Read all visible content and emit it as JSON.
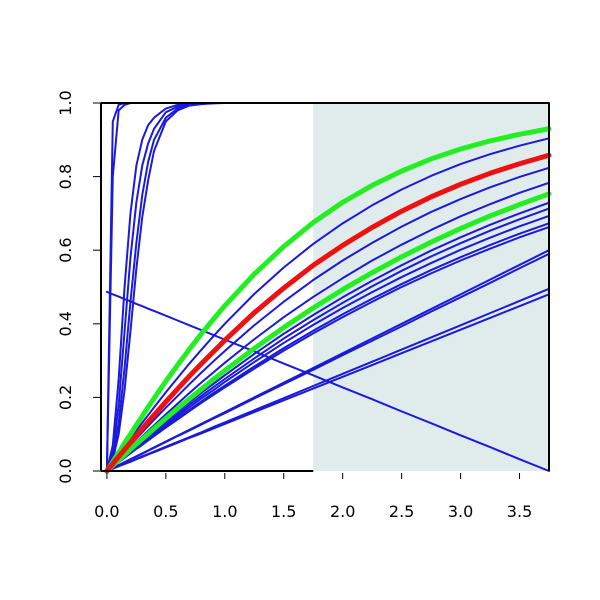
{
  "chart_data": {
    "type": "line",
    "title": "",
    "xlabel": "",
    "ylabel": "",
    "xlim": [
      -0.05,
      3.75
    ],
    "ylim": [
      0.0,
      1.0
    ],
    "grid": false,
    "x_ticks": [
      0.0,
      0.5,
      1.0,
      1.5,
      2.0,
      2.5,
      3.0,
      3.5
    ],
    "x_tick_labels": [
      "0.0",
      "0.5",
      "1.0",
      "1.5",
      "2.0",
      "2.5",
      "3.0",
      "3.5"
    ],
    "y_ticks": [
      0.0,
      0.2,
      0.4,
      0.6,
      0.8,
      1.0
    ],
    "y_tick_labels": [
      "0.0",
      "0.2",
      "0.4",
      "0.6",
      "0.8",
      "1.0"
    ],
    "shaded_region": {
      "x_from": 1.75,
      "x_to": 3.75,
      "y_from": 0.0,
      "y_to": 1.0,
      "color": "#e0ecec"
    },
    "colors": {
      "blue": "#1a1adb",
      "red": "#ee1111",
      "green": "#22ee22",
      "axis": "#000000"
    },
    "x": [
      0.0,
      0.05,
      0.1,
      0.15,
      0.2,
      0.25,
      0.3,
      0.35,
      0.4,
      0.5,
      0.6,
      0.7,
      0.8,
      0.9,
      1.0,
      1.25,
      1.5,
      1.75,
      2.0,
      2.25,
      2.5,
      2.75,
      3.0,
      3.25,
      3.5,
      3.75
    ],
    "series": [
      {
        "color": "blue",
        "width": 2,
        "values": [
          0.0,
          0.95,
          0.995,
          1.0,
          1.0,
          1.0,
          1.0,
          1.0,
          1.0,
          1.0,
          1.0,
          1.0,
          1.0,
          1.0,
          1.0,
          1.0,
          1.0,
          1.0,
          1.0,
          1.0,
          1.0,
          1.0,
          1.0,
          1.0,
          1.0,
          1.0
        ]
      },
      {
        "color": "blue",
        "width": 2,
        "values": [
          0.0,
          0.8,
          0.98,
          0.995,
          1.0,
          1.0,
          1.0,
          1.0,
          1.0,
          1.0,
          1.0,
          1.0,
          1.0,
          1.0,
          1.0,
          1.0,
          1.0,
          1.0,
          1.0,
          1.0,
          1.0,
          1.0,
          1.0,
          1.0,
          1.0,
          1.0
        ]
      },
      {
        "color": "blue",
        "width": 2,
        "values": [
          0.0,
          0.07,
          0.25,
          0.5,
          0.7,
          0.83,
          0.9,
          0.94,
          0.96,
          0.985,
          0.995,
          0.998,
          1.0,
          1.0,
          1.0,
          1.0,
          1.0,
          1.0,
          1.0,
          1.0,
          1.0,
          1.0,
          1.0,
          1.0,
          1.0,
          1.0
        ]
      },
      {
        "color": "blue",
        "width": 2,
        "values": [
          0.0,
          0.05,
          0.18,
          0.38,
          0.58,
          0.73,
          0.83,
          0.89,
          0.93,
          0.975,
          0.99,
          0.996,
          0.999,
          1.0,
          1.0,
          1.0,
          1.0,
          1.0,
          1.0,
          1.0,
          1.0,
          1.0,
          1.0,
          1.0,
          1.0,
          1.0
        ]
      },
      {
        "color": "blue",
        "width": 2,
        "values": [
          0.0,
          0.04,
          0.13,
          0.28,
          0.46,
          0.62,
          0.75,
          0.84,
          0.9,
          0.96,
          0.985,
          0.995,
          0.998,
          1.0,
          1.0,
          1.0,
          1.0,
          1.0,
          1.0,
          1.0,
          1.0,
          1.0,
          1.0,
          1.0,
          1.0,
          1.0
        ]
      },
      {
        "color": "blue",
        "width": 2,
        "values": [
          0.0,
          0.03,
          0.1,
          0.22,
          0.38,
          0.55,
          0.69,
          0.79,
          0.87,
          0.95,
          0.98,
          0.993,
          0.997,
          0.999,
          1.0,
          1.0,
          1.0,
          1.0,
          1.0,
          1.0,
          1.0,
          1.0,
          1.0,
          1.0,
          1.0,
          1.0
        ]
      },
      {
        "color": "blue",
        "width": 2,
        "values": [
          0.0,
          0.025,
          0.05,
          0.076,
          0.1,
          0.125,
          0.149,
          0.174,
          0.197,
          0.244,
          0.288,
          0.331,
          0.372,
          0.411,
          0.449,
          0.535,
          0.61,
          0.675,
          0.73,
          0.776,
          0.815,
          0.848,
          0.875,
          0.897,
          0.915,
          0.93
        ]
      },
      {
        "color": "blue",
        "width": 2,
        "values": [
          0.0,
          0.022,
          0.044,
          0.066,
          0.088,
          0.11,
          0.131,
          0.152,
          0.173,
          0.214,
          0.253,
          0.292,
          0.329,
          0.365,
          0.4,
          0.481,
          0.553,
          0.617,
          0.673,
          0.722,
          0.765,
          0.802,
          0.834,
          0.861,
          0.884,
          0.904
        ]
      },
      {
        "color": "blue",
        "width": 2,
        "values": [
          0.0,
          0.02,
          0.039,
          0.058,
          0.077,
          0.096,
          0.115,
          0.134,
          0.152,
          0.188,
          0.223,
          0.258,
          0.291,
          0.323,
          0.355,
          0.43,
          0.497,
          0.559,
          0.613,
          0.662,
          0.706,
          0.745,
          0.779,
          0.809,
          0.835,
          0.858
        ]
      },
      {
        "color": "blue",
        "width": 2,
        "values": [
          0.0,
          0.018,
          0.036,
          0.053,
          0.071,
          0.088,
          0.105,
          0.122,
          0.139,
          0.172,
          0.204,
          0.236,
          0.267,
          0.297,
          0.326,
          0.396,
          0.46,
          0.519,
          0.572,
          0.62,
          0.664,
          0.704,
          0.739,
          0.771,
          0.799,
          0.824
        ]
      },
      {
        "color": "blue",
        "width": 2,
        "values": [
          0.0,
          0.016,
          0.032,
          0.048,
          0.063,
          0.079,
          0.094,
          0.109,
          0.124,
          0.154,
          0.183,
          0.212,
          0.24,
          0.267,
          0.294,
          0.358,
          0.418,
          0.473,
          0.524,
          0.572,
          0.615,
          0.655,
          0.692,
          0.725,
          0.756,
          0.783
        ]
      },
      {
        "color": "blue",
        "width": 2,
        "values": [
          0.0,
          0.015,
          0.03,
          0.044,
          0.059,
          0.073,
          0.087,
          0.101,
          0.115,
          0.143,
          0.17,
          0.196,
          0.222,
          0.248,
          0.273,
          0.333,
          0.39,
          0.443,
          0.493,
          0.539,
          0.582,
          0.622,
          0.659,
          0.693,
          0.724,
          0.753
        ]
      },
      {
        "color": "blue",
        "width": 2,
        "values": [
          0.0,
          0.014,
          0.028,
          0.042,
          0.056,
          0.069,
          0.083,
          0.096,
          0.11,
          0.136,
          0.162,
          0.187,
          0.212,
          0.236,
          0.26,
          0.318,
          0.373,
          0.424,
          0.472,
          0.517,
          0.559,
          0.599,
          0.635,
          0.669,
          0.7,
          0.729
        ]
      },
      {
        "color": "blue",
        "width": 2,
        "values": [
          0.0,
          0.013,
          0.027,
          0.04,
          0.053,
          0.066,
          0.079,
          0.092,
          0.105,
          0.13,
          0.155,
          0.18,
          0.204,
          0.227,
          0.25,
          0.306,
          0.36,
          0.41,
          0.457,
          0.502,
          0.544,
          0.583,
          0.619,
          0.653,
          0.684,
          0.713
        ]
      },
      {
        "color": "blue",
        "width": 2,
        "values": [
          0.0,
          0.013,
          0.026,
          0.039,
          0.051,
          0.064,
          0.076,
          0.089,
          0.101,
          0.126,
          0.15,
          0.173,
          0.197,
          0.219,
          0.242,
          0.296,
          0.348,
          0.397,
          0.443,
          0.486,
          0.527,
          0.565,
          0.601,
          0.634,
          0.665,
          0.693
        ]
      },
      {
        "color": "blue",
        "width": 2,
        "values": [
          0.0,
          0.012,
          0.025,
          0.037,
          0.049,
          0.061,
          0.073,
          0.085,
          0.097,
          0.121,
          0.144,
          0.166,
          0.189,
          0.211,
          0.232,
          0.284,
          0.334,
          0.381,
          0.426,
          0.468,
          0.508,
          0.546,
          0.581,
          0.614,
          0.645,
          0.673
        ]
      },
      {
        "color": "blue",
        "width": 2,
        "values": [
          0.0,
          0.012,
          0.024,
          0.036,
          0.048,
          0.06,
          0.071,
          0.083,
          0.095,
          0.118,
          0.14,
          0.163,
          0.185,
          0.206,
          0.227,
          0.278,
          0.327,
          0.374,
          0.418,
          0.46,
          0.5,
          0.537,
          0.572,
          0.604,
          0.635,
          0.663
        ]
      },
      {
        "color": "blue",
        "width": 2,
        "values": [
          0.0,
          0.008,
          0.016,
          0.024,
          0.032,
          0.04,
          0.048,
          0.056,
          0.064,
          0.08,
          0.096,
          0.112,
          0.128,
          0.144,
          0.16,
          0.2,
          0.24,
          0.28,
          0.32,
          0.36,
          0.4,
          0.44,
          0.48,
          0.52,
          0.56,
          0.6
        ]
      },
      {
        "color": "blue",
        "width": 2,
        "values": [
          0.0,
          0.008,
          0.016,
          0.024,
          0.032,
          0.039,
          0.047,
          0.055,
          0.063,
          0.079,
          0.095,
          0.11,
          0.126,
          0.142,
          0.157,
          0.197,
          0.236,
          0.275,
          0.315,
          0.354,
          0.393,
          0.433,
          0.472,
          0.511,
          0.551,
          0.59
        ]
      },
      {
        "color": "blue",
        "width": 2,
        "values": [
          0.0,
          0.007,
          0.013,
          0.02,
          0.026,
          0.033,
          0.04,
          0.046,
          0.053,
          0.066,
          0.079,
          0.092,
          0.105,
          0.119,
          0.132,
          0.165,
          0.198,
          0.231,
          0.264,
          0.297,
          0.33,
          0.363,
          0.396,
          0.429,
          0.462,
          0.495
        ]
      },
      {
        "color": "blue",
        "width": 2,
        "values": [
          0.0,
          0.006,
          0.013,
          0.019,
          0.025,
          0.032,
          0.038,
          0.045,
          0.051,
          0.064,
          0.077,
          0.09,
          0.102,
          0.115,
          0.128,
          0.16,
          0.192,
          0.224,
          0.256,
          0.288,
          0.32,
          0.352,
          0.384,
          0.416,
          0.448,
          0.48
        ]
      },
      {
        "color": "blue",
        "width": 2,
        "values": [
          0.487,
          0.48,
          0.474,
          0.467,
          0.461,
          0.454,
          0.448,
          0.441,
          0.435,
          0.422,
          0.409,
          0.396,
          0.383,
          0.37,
          0.357,
          0.325,
          0.292,
          0.26,
          0.227,
          0.195,
          0.162,
          0.13,
          0.097,
          0.065,
          0.032,
          0.0
        ]
      },
      {
        "color": "green",
        "width": 5,
        "values": [
          0.0,
          0.025,
          0.05,
          0.076,
          0.1,
          0.125,
          0.149,
          0.174,
          0.197,
          0.244,
          0.288,
          0.331,
          0.372,
          0.411,
          0.449,
          0.535,
          0.61,
          0.675,
          0.73,
          0.776,
          0.815,
          0.848,
          0.875,
          0.897,
          0.915,
          0.93
        ]
      },
      {
        "color": "green",
        "width": 5,
        "values": [
          0.0,
          0.015,
          0.03,
          0.044,
          0.059,
          0.073,
          0.087,
          0.101,
          0.115,
          0.143,
          0.17,
          0.196,
          0.222,
          0.248,
          0.273,
          0.333,
          0.39,
          0.443,
          0.493,
          0.539,
          0.582,
          0.622,
          0.659,
          0.693,
          0.724,
          0.753
        ]
      },
      {
        "color": "red",
        "width": 5,
        "values": [
          0.0,
          0.02,
          0.039,
          0.058,
          0.077,
          0.096,
          0.115,
          0.134,
          0.152,
          0.188,
          0.223,
          0.258,
          0.291,
          0.323,
          0.355,
          0.43,
          0.497,
          0.559,
          0.613,
          0.662,
          0.706,
          0.745,
          0.779,
          0.809,
          0.835,
          0.858
        ]
      }
    ]
  }
}
